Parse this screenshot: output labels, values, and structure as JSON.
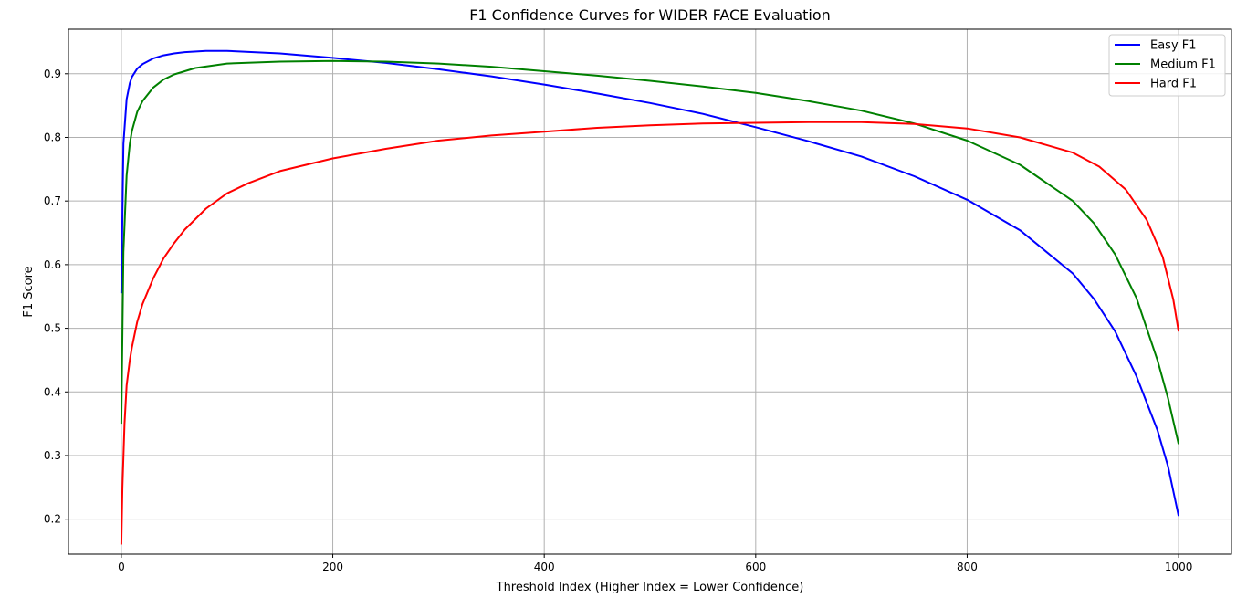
{
  "chart_data": {
    "type": "line",
    "title": "F1 Confidence Curves for WIDER FACE Evaluation",
    "xlabel": "Threshold Index (Higher Index = Lower Confidence)",
    "ylabel": "F1 Score",
    "xlim": [
      -50,
      1050
    ],
    "ylim": [
      0.145,
      0.97
    ],
    "xticks": [
      0,
      200,
      400,
      600,
      800,
      1000
    ],
    "yticks": [
      0.2,
      0.3,
      0.4,
      0.5,
      0.6,
      0.7,
      0.8,
      0.9
    ],
    "grid": true,
    "legend_position": "top-right",
    "series": [
      {
        "name": "Easy F1",
        "color": "#0000ff",
        "x": [
          0,
          2,
          5,
          8,
          10,
          15,
          20,
          30,
          40,
          50,
          60,
          80,
          100,
          150,
          200,
          250,
          300,
          350,
          400,
          450,
          500,
          550,
          600,
          650,
          700,
          750,
          800,
          850,
          900,
          920,
          940,
          960,
          980,
          990,
          1000
        ],
        "y": [
          0.555,
          0.79,
          0.86,
          0.885,
          0.895,
          0.908,
          0.915,
          0.924,
          0.929,
          0.932,
          0.934,
          0.936,
          0.936,
          0.932,
          0.925,
          0.917,
          0.907,
          0.896,
          0.883,
          0.869,
          0.854,
          0.837,
          0.816,
          0.794,
          0.77,
          0.739,
          0.702,
          0.654,
          0.586,
          0.546,
          0.495,
          0.425,
          0.34,
          0.283,
          0.205
        ]
      },
      {
        "name": "Medium F1",
        "color": "#008000",
        "x": [
          0,
          2,
          5,
          8,
          10,
          15,
          20,
          30,
          40,
          50,
          70,
          100,
          150,
          200,
          250,
          300,
          350,
          400,
          450,
          500,
          550,
          600,
          650,
          700,
          750,
          800,
          850,
          900,
          920,
          940,
          960,
          980,
          990,
          1000
        ],
        "y": [
          0.35,
          0.62,
          0.74,
          0.79,
          0.81,
          0.84,
          0.857,
          0.878,
          0.891,
          0.899,
          0.909,
          0.916,
          0.919,
          0.92,
          0.919,
          0.916,
          0.911,
          0.904,
          0.897,
          0.889,
          0.88,
          0.87,
          0.857,
          0.842,
          0.822,
          0.795,
          0.757,
          0.7,
          0.665,
          0.616,
          0.548,
          0.45,
          0.39,
          0.318
        ]
      },
      {
        "name": "Hard F1",
        "color": "#ff0000",
        "x": [
          0,
          1,
          3,
          5,
          8,
          10,
          15,
          20,
          30,
          40,
          50,
          60,
          80,
          100,
          120,
          150,
          200,
          250,
          300,
          350,
          400,
          450,
          500,
          550,
          600,
          650,
          700,
          750,
          800,
          850,
          900,
          925,
          950,
          970,
          985,
          995,
          1000
        ],
        "y": [
          0.16,
          0.25,
          0.35,
          0.41,
          0.45,
          0.47,
          0.51,
          0.538,
          0.578,
          0.61,
          0.634,
          0.655,
          0.688,
          0.712,
          0.728,
          0.747,
          0.767,
          0.782,
          0.795,
          0.803,
          0.809,
          0.815,
          0.819,
          0.822,
          0.823,
          0.824,
          0.824,
          0.821,
          0.814,
          0.8,
          0.776,
          0.754,
          0.718,
          0.67,
          0.612,
          0.545,
          0.495
        ]
      }
    ]
  }
}
